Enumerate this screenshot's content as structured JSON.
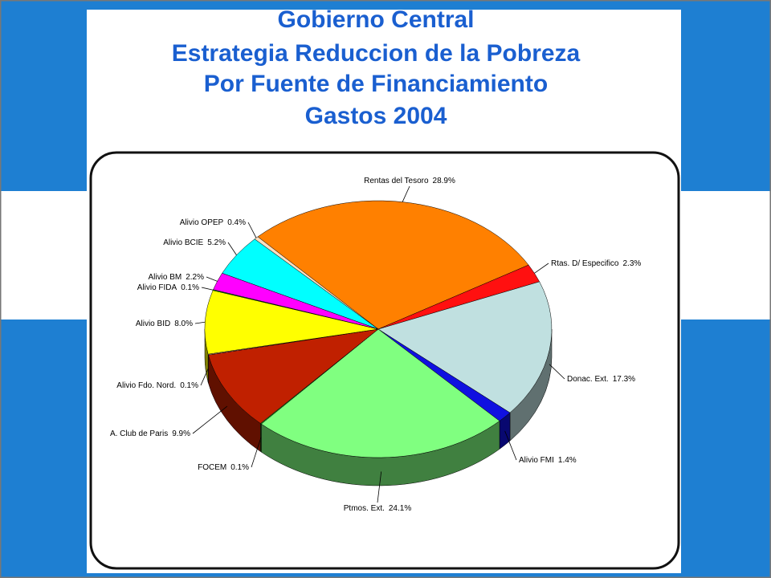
{
  "chart_data": {
    "type": "pie",
    "title": [
      "Gobierno Central",
      "Estrategia Reduccion de la Pobreza",
      "Por Fuente de Financiamiento",
      "Gastos 2004"
    ],
    "categories": [
      "Rentas del Tesoro",
      "Rtas. D/ Especifico",
      "Donac. Ext.",
      "Alivio FMI",
      "Ptmos. Ext.",
      "FOCEM",
      "A. Club de Paris",
      "Alivio Fdo. Nord.",
      "Alivio BID",
      "Alivio FIDA",
      "Alivio BM",
      "Alivio BCIE",
      "Alivio OPEP"
    ],
    "values": [
      28.9,
      2.3,
      17.3,
      1.4,
      24.1,
      0.1,
      9.9,
      0.1,
      8.0,
      0.1,
      2.2,
      5.2,
      0.4
    ],
    "value_labels": [
      "28.9%",
      "2.3%",
      "17.3%",
      "1.4%",
      "24.1%",
      "0.1%",
      "9.9%",
      "0.1%",
      "8.0%",
      "0.1%",
      "2.2%",
      "5.2%",
      "0.4%"
    ],
    "colors": [
      "#ff8000",
      "#ff1010",
      "#c0e0e0",
      "#1010e0",
      "#80ff80",
      "#20a020",
      "#c02000",
      "#ffb0b0",
      "#ffff00",
      "#00c000",
      "#ff00ff",
      "#00ffff",
      "#ffe0c0"
    ]
  }
}
